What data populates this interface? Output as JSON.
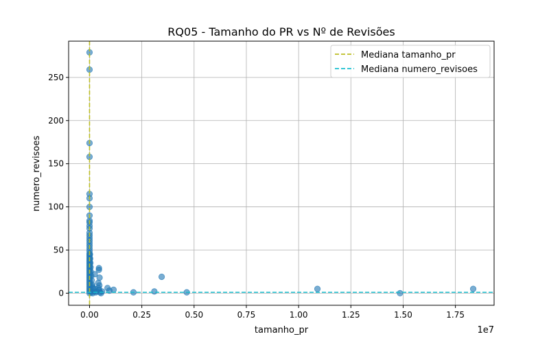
{
  "chart_data": {
    "type": "scatter",
    "title": "RQ05 - Tamanho do PR vs Nº de Revisões",
    "xlabel": "tamanho_pr",
    "ylabel": "numero_revisoes",
    "x_offset_label": "1e7",
    "xlim": [
      -1000000,
      19350000
    ],
    "ylim": [
      -14,
      292
    ],
    "x_ticks": [
      0,
      2500000,
      5000000,
      7500000,
      10000000,
      12500000,
      15000000,
      17500000
    ],
    "x_tick_labels": [
      "0.00",
      "0.25",
      "0.50",
      "0.75",
      "1.00",
      "1.25",
      "1.50",
      "1.75"
    ],
    "y_ticks": [
      0,
      50,
      100,
      150,
      200,
      250
    ],
    "y_tick_labels": [
      "0",
      "50",
      "100",
      "150",
      "200",
      "250"
    ],
    "grid": true,
    "legend_position": "top-right",
    "legend": [
      {
        "label": "Mediana tamanho_pr",
        "color": "#bcbd22",
        "style": "dashed"
      },
      {
        "label": "Mediana numero_revisoes",
        "color": "#17becf",
        "style": "dashed"
      }
    ],
    "median_x": 0,
    "median_y": 1,
    "point_color": "#1f77b4",
    "points": [
      [
        0,
        279
      ],
      [
        0,
        259
      ],
      [
        0,
        174
      ],
      [
        0,
        158
      ],
      [
        0,
        115
      ],
      [
        0,
        110
      ],
      [
        0,
        100
      ],
      [
        0,
        90
      ],
      [
        0,
        84
      ],
      [
        0,
        82
      ],
      [
        0,
        78
      ],
      [
        0,
        75
      ],
      [
        0,
        70
      ],
      [
        0,
        67
      ],
      [
        0,
        64
      ],
      [
        0,
        61
      ],
      [
        0,
        58
      ],
      [
        0,
        55
      ],
      [
        0,
        52
      ],
      [
        0,
        49
      ],
      [
        0,
        46
      ],
      [
        0,
        44
      ],
      [
        0,
        42
      ],
      [
        0,
        40
      ],
      [
        0,
        38
      ],
      [
        0,
        36
      ],
      [
        0,
        34
      ],
      [
        0,
        32
      ],
      [
        0,
        30
      ],
      [
        0,
        28
      ],
      [
        0,
        26
      ],
      [
        0,
        24
      ],
      [
        0,
        22
      ],
      [
        0,
        20
      ],
      [
        0,
        18
      ],
      [
        0,
        16
      ],
      [
        0,
        14
      ],
      [
        0,
        12
      ],
      [
        0,
        10
      ],
      [
        0,
        8
      ],
      [
        0,
        6
      ],
      [
        0,
        4
      ],
      [
        0,
        2
      ],
      [
        0,
        0
      ],
      [
        20000,
        45
      ],
      [
        30000,
        40
      ],
      [
        40000,
        35
      ],
      [
        50000,
        30
      ],
      [
        60000,
        25
      ],
      [
        80000,
        20
      ],
      [
        100000,
        15
      ],
      [
        120000,
        10
      ],
      [
        140000,
        8
      ],
      [
        160000,
        6
      ],
      [
        60000,
        3
      ],
      [
        90000,
        1
      ],
      [
        150000,
        0
      ],
      [
        200000,
        2
      ],
      [
        250000,
        5
      ],
      [
        300000,
        1
      ],
      [
        450000,
        29
      ],
      [
        450000,
        27
      ],
      [
        480000,
        18
      ],
      [
        420000,
        12
      ],
      [
        470000,
        9
      ],
      [
        430000,
        6
      ],
      [
        460000,
        4
      ],
      [
        350000,
        2
      ],
      [
        500000,
        1
      ],
      [
        550000,
        0
      ],
      [
        250000,
        22
      ],
      [
        600000,
        2
      ],
      [
        860000,
        6
      ],
      [
        950000,
        3
      ],
      [
        1150000,
        4
      ],
      [
        2100000,
        1
      ],
      [
        3100000,
        2
      ],
      [
        3450000,
        19
      ],
      [
        4650000,
        1
      ],
      [
        10900000,
        5
      ],
      [
        14850000,
        0
      ],
      [
        18350000,
        5
      ]
    ]
  }
}
